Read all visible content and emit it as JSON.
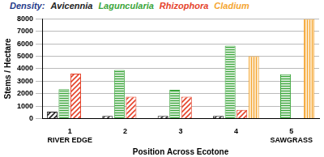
{
  "chart_data": {
    "type": "bar",
    "title": "Density:",
    "x_label": "Position Across Ecotone",
    "y_label": "Stems / Hectare",
    "categories": [
      [
        "1",
        "RIVER EDGE"
      ],
      "2",
      "3",
      "4",
      [
        "5",
        "SAWGRASS"
      ]
    ],
    "series": [
      {
        "name": "Avicennia",
        "color": "#222222",
        "values": [
          550,
          200,
          200,
          200,
          null
        ]
      },
      {
        "name": "Laguncularia",
        "color": "#3aa53a",
        "values": [
          2350,
          3900,
          2300,
          5850,
          3550
        ]
      },
      {
        "name": "Rhizophora",
        "color": "#e5432b",
        "values": [
          3600,
          1750,
          1750,
          700,
          null
        ]
      },
      {
        "name": "Cladium",
        "color": "#f5a631",
        "values": [
          null,
          null,
          null,
          5000,
          8000
        ]
      }
    ],
    "ylim": [
      0,
      8000
    ],
    "yticks": [
      0,
      1000,
      2000,
      3000,
      4000,
      5000,
      6000,
      7000,
      8000
    ],
    "grid": true,
    "legend": "top"
  }
}
